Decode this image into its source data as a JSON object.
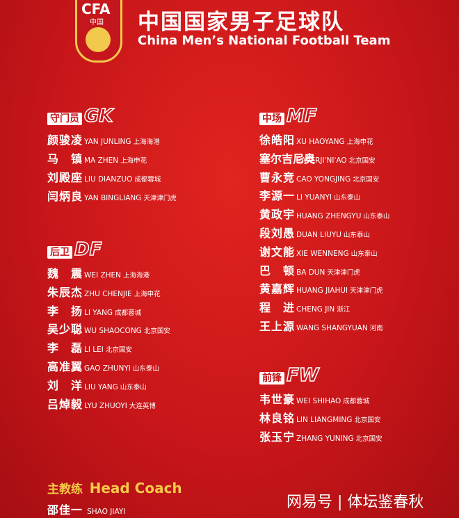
{
  "header": {
    "logo_text": "CFA",
    "logo_sub": "中国",
    "title": "中国国家男子足球队",
    "subtitle": "China Men’s National Football Team"
  },
  "sections": [
    {
      "label": "守门员",
      "code": "GK",
      "players": [
        {
          "name": "颜骏凌",
          "pinyin": "YAN JUNLING",
          "club": "上海海港"
        },
        {
          "name": "马镇",
          "pinyin": "MA ZHEN",
          "club": "上海申花"
        },
        {
          "name": "刘殿座",
          "pinyin": "LIU DIANZUO",
          "club": "成都蓉城"
        },
        {
          "name": "闫炳良",
          "pinyin": "YAN BINGLIANG",
          "club": "天津津门虎"
        }
      ]
    },
    {
      "label": "后卫",
      "code": "DF",
      "players": [
        {
          "name": "魏震",
          "pinyin": "WEI ZHEN",
          "club": "上海海港"
        },
        {
          "name": "朱辰杰",
          "pinyin": "ZHU CHENJIE",
          "club": "上海申花"
        },
        {
          "name": "李扬",
          "pinyin": "LI YANG",
          "club": "成都蓉城"
        },
        {
          "name": "吴少聪",
          "pinyin": "WU SHAOCONG",
          "club": "北京国安"
        },
        {
          "name": "李磊",
          "pinyin": "LI LEI",
          "club": "北京国安"
        },
        {
          "name": "高准翼",
          "pinyin": "GAO ZHUNYI",
          "club": "山东泰山"
        },
        {
          "name": "刘洋",
          "pinyin": "LIU YANG",
          "club": "山东泰山"
        },
        {
          "name": "吕焯毅",
          "pinyin": "LYU ZHUOYI",
          "club": "大连英博"
        }
      ]
    },
    {
      "label": "中场",
      "code": "MF",
      "players": [
        {
          "name": "徐皓阳",
          "pinyin": "XU HAOYANG",
          "club": "上海申花"
        },
        {
          "name": "塞尔吉尼奥",
          "pinyin": "SAI ERJI'NI'AO",
          "club": "北京国安"
        },
        {
          "name": "曹永竞",
          "pinyin": "CAO YONGJING",
          "club": "北京国安"
        },
        {
          "name": "李源一",
          "pinyin": "LI YUANYI",
          "club": "山东泰山"
        },
        {
          "name": "黄政宇",
          "pinyin": "HUANG ZHENGYU",
          "club": "山东泰山"
        },
        {
          "name": "段刘愚",
          "pinyin": "DUAN LIUYU",
          "club": "山东泰山"
        },
        {
          "name": "谢文能",
          "pinyin": "XIE WENNENG",
          "club": "山东泰山"
        },
        {
          "name": "巴顿",
          "pinyin": "BA DUN",
          "club": "天津津门虎"
        },
        {
          "name": "黄嘉辉",
          "pinyin": "HUANG JIAHUI",
          "club": "天津津门虎"
        },
        {
          "name": "程进",
          "pinyin": "CHENG JIN",
          "club": "浙江"
        },
        {
          "name": "王上源",
          "pinyin": "WANG SHANGYUAN",
          "club": "河南"
        }
      ]
    },
    {
      "label": "前锋",
      "code": "FW",
      "players": [
        {
          "name": "韦世豪",
          "pinyin": "WEI SHIHAO",
          "club": "成都蓉城"
        },
        {
          "name": "林良铭",
          "pinyin": "LIN LIANGMING",
          "club": "北京国安"
        },
        {
          "name": "张玉宁",
          "pinyin": "ZHANG YUNING",
          "club": "北京国安"
        }
      ]
    }
  ],
  "coach": {
    "label_cn": "主教练",
    "label_en": "Head Coach",
    "name": "邵佳一",
    "pinyin": "SHAO JIAYI"
  },
  "watermark": "网易号 | 体坛鉴春秋"
}
